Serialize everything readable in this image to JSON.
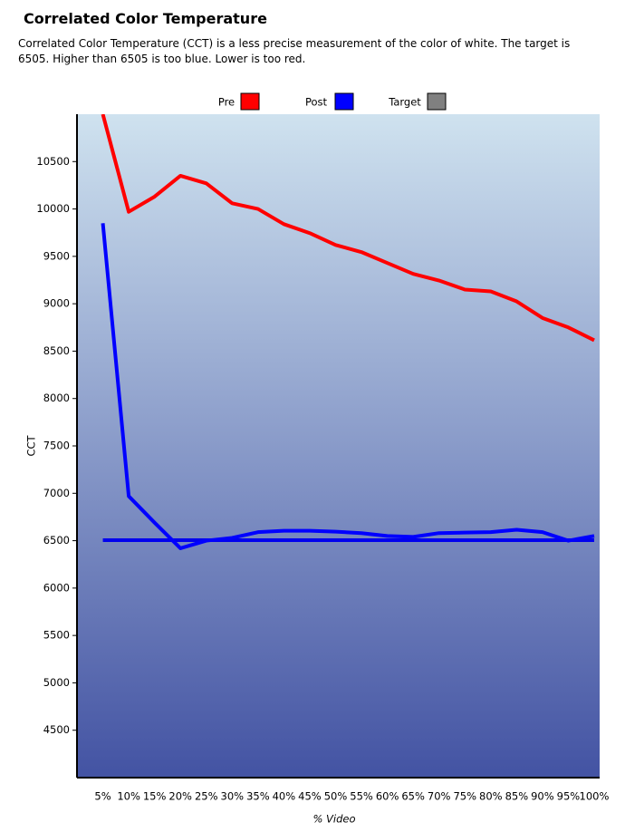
{
  "chart_data": {
    "type": "line",
    "title": "Correlated Color Temperature",
    "subtitle": "Correlated Color Temperature (CCT) is a less precise measurement of the color of white. The target is 6505.  Higher than 6505 is too blue. Lower is too red.",
    "x_label": "% Video",
    "y_label": "CCT",
    "categories": [
      "5%",
      "10%",
      "15%",
      "20%",
      "25%",
      "30%",
      "35%",
      "40%",
      "45%",
      "50%",
      "55%",
      "60%",
      "65%",
      "70%",
      "75%",
      "80%",
      "85%",
      "90%",
      "95%",
      "100%"
    ],
    "series": [
      {
        "name": "Pre",
        "color": "#ff0000",
        "values": [
          11000,
          9970,
          10130,
          10350,
          10270,
          10060,
          10000,
          9840,
          9745,
          9620,
          9545,
          9430,
          9315,
          9245,
          9150,
          9130,
          9025,
          8850,
          8750,
          8615
        ]
      },
      {
        "name": "Post",
        "color": "#0000ff",
        "values": [
          9850,
          6970,
          6690,
          6420,
          6500,
          6530,
          6590,
          6605,
          6605,
          6595,
          6580,
          6550,
          6540,
          6580,
          6585,
          6590,
          6615,
          6590,
          6500,
          6550
        ]
      },
      {
        "name": "Target",
        "color": "#0000ee",
        "legend_color": "#808080",
        "values": [
          6505,
          6505,
          6505,
          6505,
          6505,
          6505,
          6505,
          6505,
          6505,
          6505,
          6505,
          6505,
          6505,
          6505,
          6505,
          6505,
          6505,
          6505,
          6505,
          6505
        ]
      }
    ],
    "ylim": [
      4000,
      11000
    ],
    "yticks": [
      4500,
      5000,
      5500,
      6000,
      6500,
      7000,
      7500,
      8000,
      8500,
      9000,
      9500,
      10000,
      10500
    ],
    "legend": "top",
    "background_gradient": [
      "#cfe2ef",
      "#4353a3"
    ]
  }
}
